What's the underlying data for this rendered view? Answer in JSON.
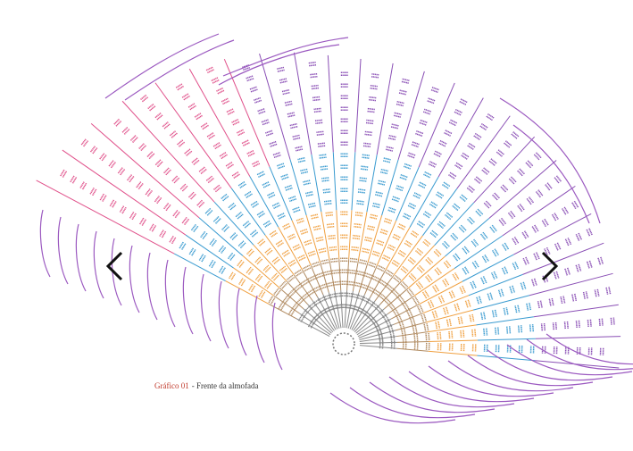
{
  "caption": {
    "label": "Gráfico 01",
    "text": "- Frente da almofada"
  }
}
